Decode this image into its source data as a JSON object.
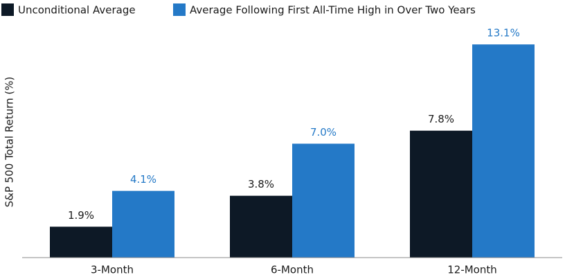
{
  "chart_data": {
    "type": "bar",
    "y_label": "S&P 500 Total Return (%)",
    "categories": [
      "3-Month",
      "6-Month",
      "12-Month"
    ],
    "series": [
      {
        "name": "Unconditional Average",
        "color": "#0d1926",
        "values": [
          1.9,
          3.8,
          7.8
        ],
        "value_labels": [
          "1.9%",
          "3.8%",
          "7.8%"
        ]
      },
      {
        "name": "Average Following First All-Time High in Over Two Years",
        "color": "#2479c7",
        "values": [
          4.1,
          7.0,
          13.1
        ],
        "value_labels": [
          "4.1%",
          "7.0%",
          "13.1%"
        ]
      }
    ],
    "ylim": [
      0,
      14
    ],
    "legend": "top-left"
  }
}
